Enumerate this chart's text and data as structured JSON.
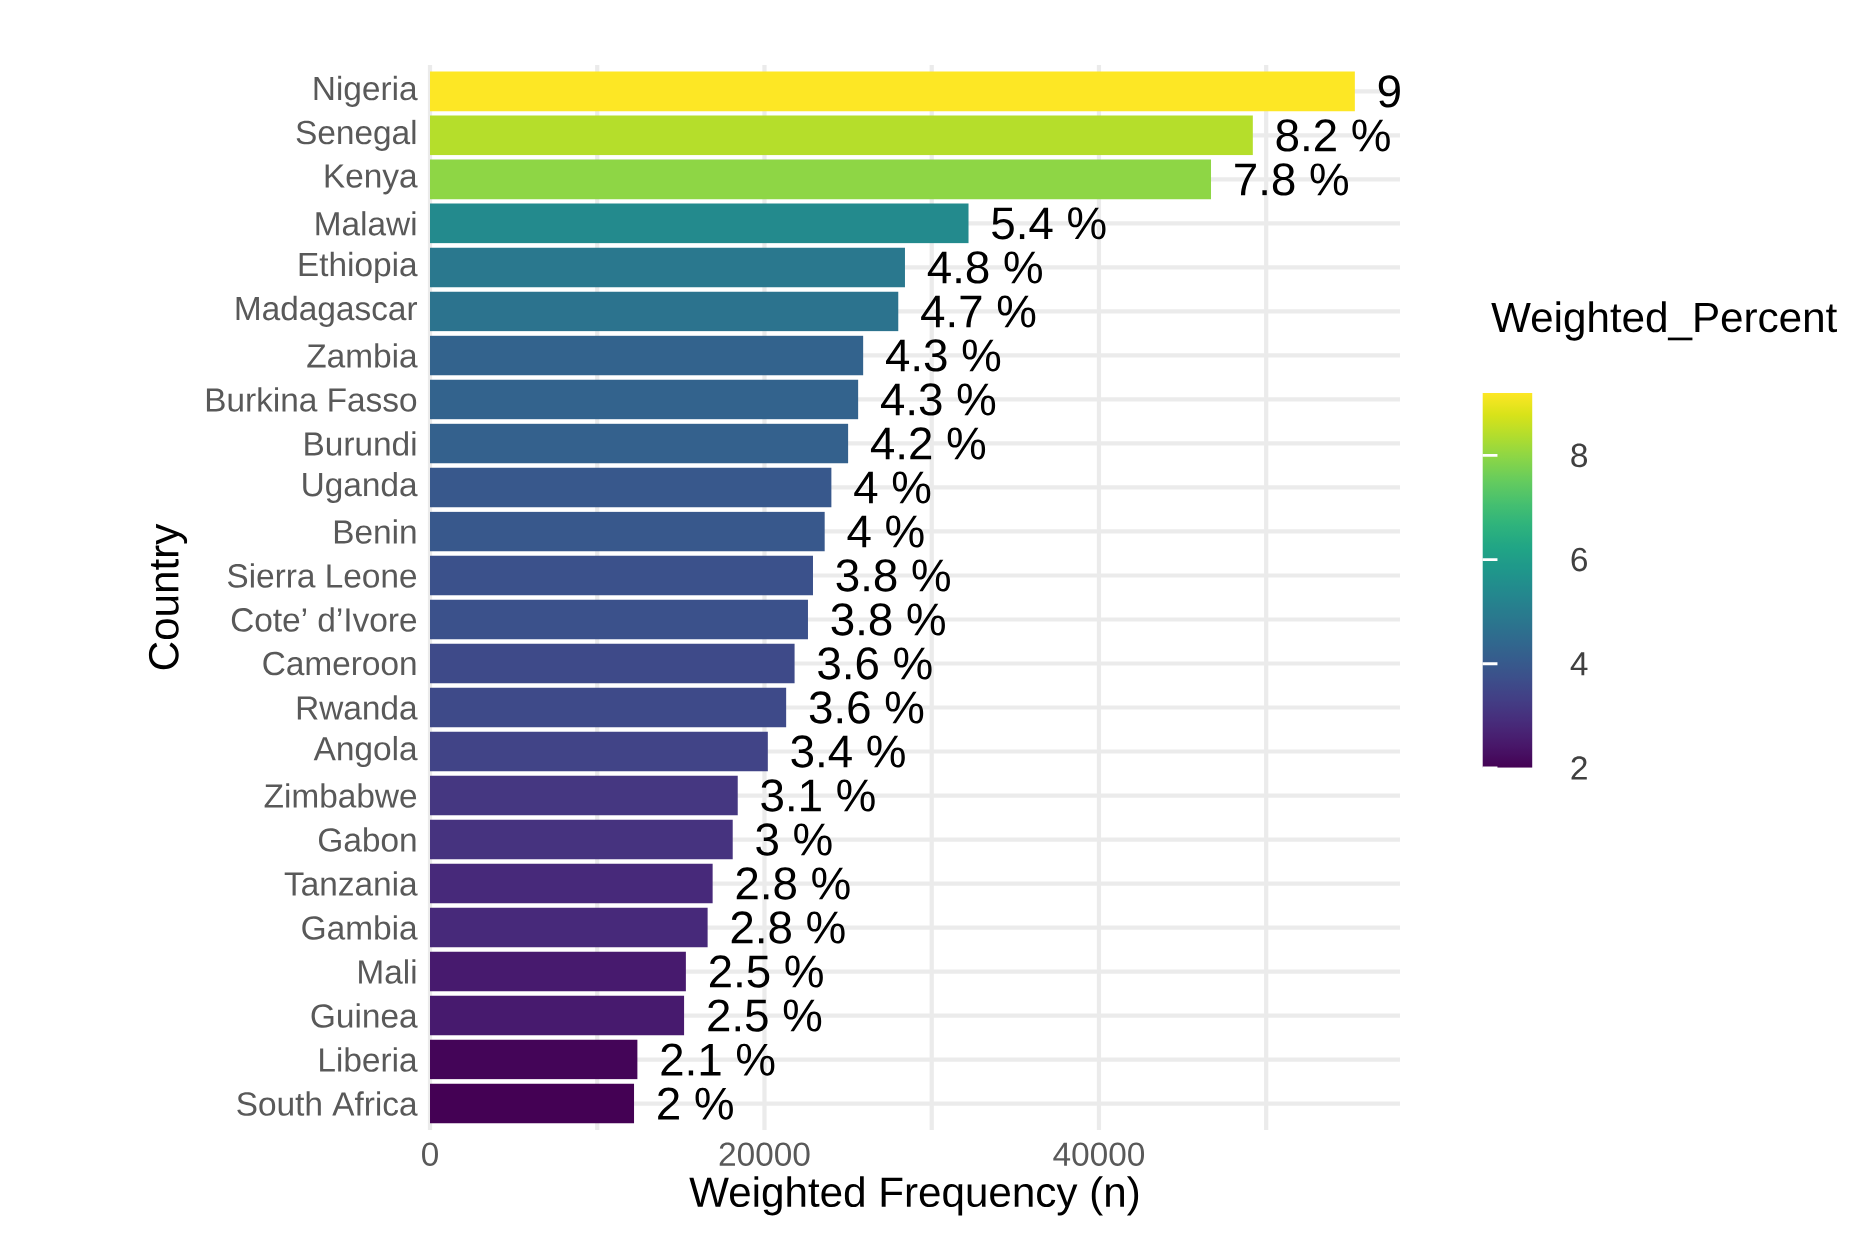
{
  "chart_data": {
    "type": "bar",
    "orientation": "horizontal",
    "xlabel": "Weighted Frequency (n)",
    "ylabel": "Country",
    "grid": true,
    "categories": [
      "Nigeria",
      "Senegal",
      "Kenya",
      "Malawi",
      "Ethiopia",
      "Madagascar",
      "Zambia",
      "Burkina Fasso",
      "Burundi",
      "Uganda",
      "Benin",
      "Sierra Leone",
      "Cote’ d’Ivore",
      "Cameroon",
      "Rwanda",
      "Angola",
      "Zimbabwe",
      "Gabon",
      "Tanzania",
      "Gambia",
      "Mali",
      "Guinea",
      "Liberia",
      "South Africa"
    ],
    "values": [
      55300,
      49200,
      46700,
      32200,
      28400,
      28000,
      25900,
      25600,
      25000,
      24000,
      23600,
      22900,
      22600,
      21800,
      21300,
      20200,
      18400,
      18100,
      16900,
      16600,
      15300,
      15200,
      12400,
      12200
    ],
    "annotations": [
      {
        "text": "9",
        "x": 55300,
        "y": "Nigeria"
      },
      {
        "text": "8.2 %",
        "x": 49200,
        "y": "Senegal"
      },
      {
        "text": "7.8 %",
        "x": 46700,
        "y": "Kenya"
      },
      {
        "text": "5.4 %",
        "x": 32200,
        "y": "Malawi"
      },
      {
        "text": "4.8 %",
        "x": 28400,
        "y": "Ethiopia"
      },
      {
        "text": "4.7 %",
        "x": 28000,
        "y": "Madagascar"
      },
      {
        "text": "4.3 %",
        "x": 25900,
        "y": "Zambia"
      },
      {
        "text": "4.3 %",
        "x": 25600,
        "y": "Burkina Fasso"
      },
      {
        "text": "4.2 %",
        "x": 25000,
        "y": "Burundi"
      },
      {
        "text": "4 %",
        "x": 24000,
        "y": "Uganda"
      },
      {
        "text": "4 %",
        "x": 23600,
        "y": "Benin"
      },
      {
        "text": "3.8 %",
        "x": 22900,
        "y": "Sierra Leone"
      },
      {
        "text": "3.8 %",
        "x": 22600,
        "y": "Cote’ d’Ivore"
      },
      {
        "text": "3.6 %",
        "x": 21800,
        "y": "Cameroon"
      },
      {
        "text": "3.6 %",
        "x": 21300,
        "y": "Rwanda"
      },
      {
        "text": "3.4 %",
        "x": 20200,
        "y": "Angola"
      },
      {
        "text": "3.1 %",
        "x": 18400,
        "y": "Zimbabwe"
      },
      {
        "text": "3 %",
        "x": 18100,
        "y": "Gabon"
      },
      {
        "text": "2.8 %",
        "x": 16900,
        "y": "Tanzania"
      },
      {
        "text": "2.8 %",
        "x": 16600,
        "y": "Gambia"
      },
      {
        "text": "2.5 %",
        "x": 15300,
        "y": "Mali"
      },
      {
        "text": "2.5 %",
        "x": 15200,
        "y": "Guinea"
      },
      {
        "text": "2.1 %",
        "x": 12400,
        "y": "Liberia"
      },
      {
        "text": "2 %",
        "x": 12200,
        "y": "South Africa"
      }
    ],
    "colors": [
      "#fde725",
      "#b5de2b",
      "#8ed645",
      "#238a8d",
      "#2a788e",
      "#2c738e",
      "#33638d",
      "#33638d",
      "#34618d",
      "#38588c",
      "#38588c",
      "#3b518b",
      "#3b518b",
      "#3e4a89",
      "#3e4a89",
      "#414487",
      "#453781",
      "#46337f",
      "#47297a",
      "#47297a",
      "#471a6e",
      "#471a6e",
      "#440558",
      "#440154"
    ],
    "xlim": [
      0,
      58000
    ],
    "xticks": [
      0,
      {
        "value": 10000,
        "label": null
      },
      20000,
      {
        "value": 30000,
        "label": null
      },
      40000,
      {
        "value": 50000,
        "label": null
      }
    ],
    "clabel": "Weighted_Percent",
    "clim": [
      2,
      9.2
    ],
    "cticks": [
      2,
      4,
      6,
      8
    ]
  }
}
